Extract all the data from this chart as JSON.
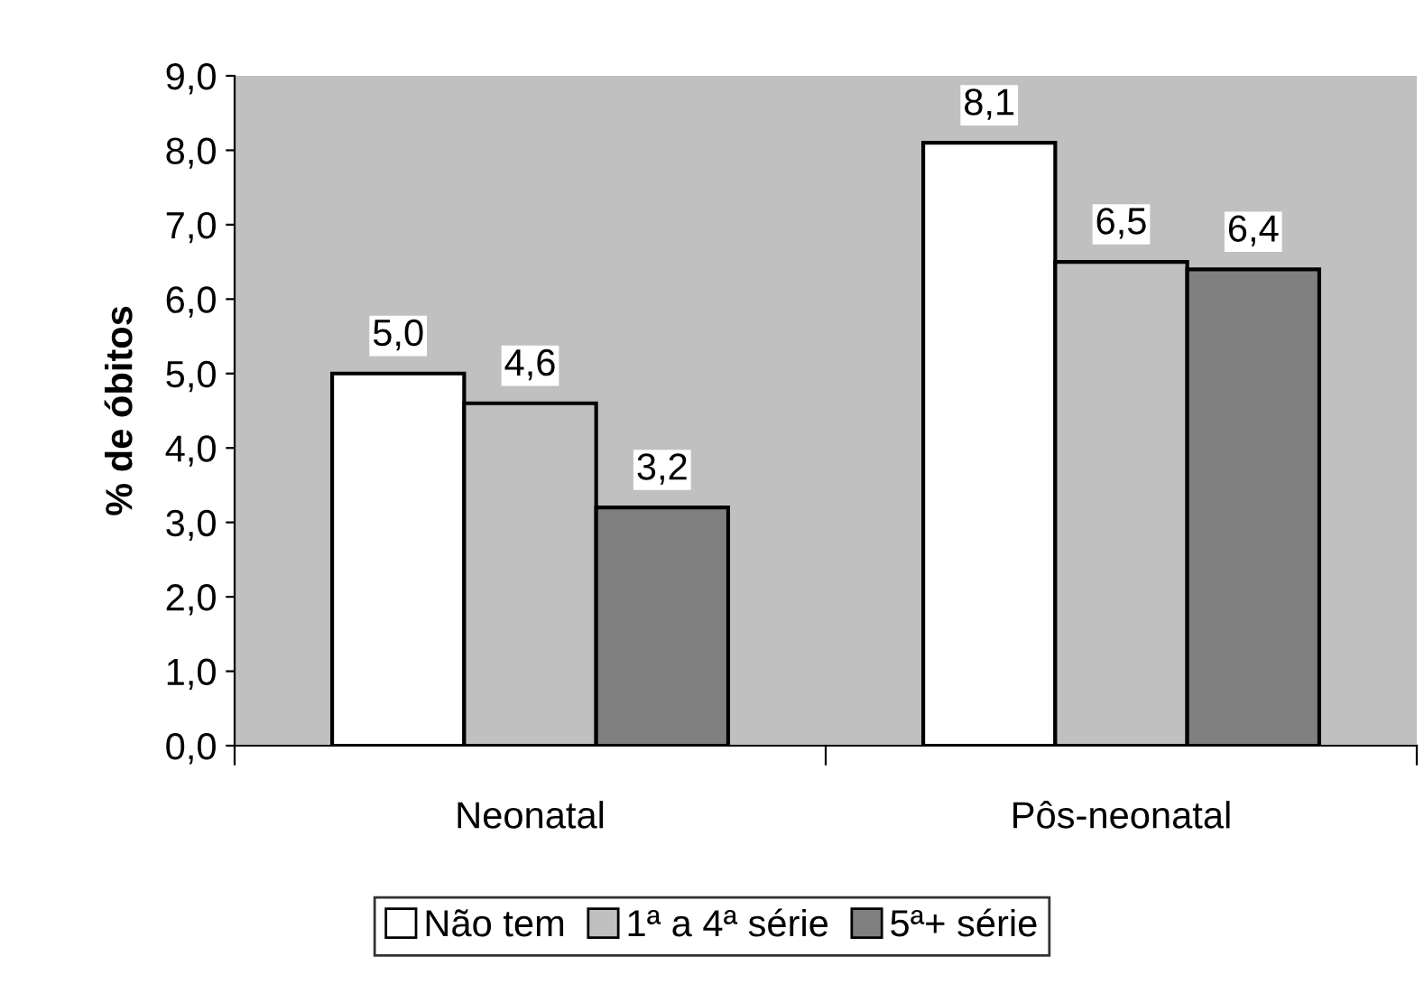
{
  "chart_data": {
    "type": "bar",
    "ylabel": "% de óbitos",
    "categories": [
      "Neonatal",
      "Pôs-neonatal"
    ],
    "series": [
      {
        "name": "Não tem",
        "color": "#ffffff",
        "values": [
          5.0,
          8.1
        ],
        "value_labels": [
          "5,0",
          "8,1"
        ]
      },
      {
        "name": "1ª a 4ª série",
        "color": "#c0c0c0",
        "values": [
          4.6,
          6.5
        ],
        "value_labels": [
          "4,6",
          "6,5"
        ]
      },
      {
        "name": "5ª+ série",
        "color": "#808080",
        "values": [
          3.2,
          6.4
        ],
        "value_labels": [
          "3,2",
          "6,4"
        ]
      }
    ],
    "ylim": [
      0,
      9
    ],
    "yticks": [
      {
        "value": 0,
        "label": "0,0"
      },
      {
        "value": 1,
        "label": "1,0"
      },
      {
        "value": 2,
        "label": "2,0"
      },
      {
        "value": 3,
        "label": "3,0"
      },
      {
        "value": 4,
        "label": "4,0"
      },
      {
        "value": 5,
        "label": "5,0"
      },
      {
        "value": 6,
        "label": "6,0"
      },
      {
        "value": 7,
        "label": "7,0"
      },
      {
        "value": 8,
        "label": "8,0"
      },
      {
        "value": 9,
        "label": "9,0"
      }
    ],
    "grid": false,
    "legend": "bottom"
  }
}
